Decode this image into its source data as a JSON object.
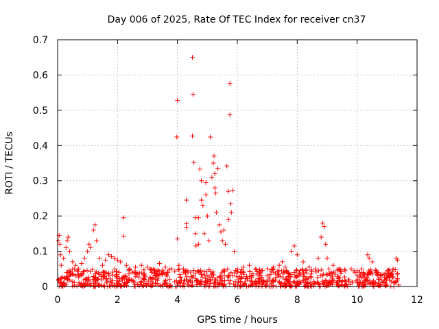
{
  "chart_data": {
    "type": "scatter",
    "title": "Day 006 of 2025, Rate Of TEC Index for receiver cn37",
    "xlabel": "GPS time / hours",
    "ylabel": "ROTI / TECUs",
    "xlim": [
      0,
      12
    ],
    "ylim": [
      0,
      0.7
    ],
    "x_ticks": [
      0,
      2,
      4,
      6,
      8,
      10,
      12
    ],
    "y_ticks": [
      0,
      0.1,
      0.2,
      0.3,
      0.4,
      0.5,
      0.6,
      0.7
    ],
    "x_tick_labels": [
      "0",
      "2",
      "4",
      "6",
      "8",
      "10",
      "12"
    ],
    "y_tick_labels": [
      "0",
      "0.1",
      "0.2",
      "0.3",
      "0.4",
      "0.5",
      "0.6",
      "0.7"
    ],
    "grid": true,
    "marker": "+",
    "color": "#ff0000",
    "series": [
      {
        "name": "ROTI",
        "points": [
          [
            0.02,
            0.13
          ],
          [
            0.05,
            0.145
          ],
          [
            0.08,
            0.12
          ],
          [
            0.1,
            0.09
          ],
          [
            0.12,
            0.06
          ],
          [
            0.2,
            0.08
          ],
          [
            0.28,
            0.11
          ],
          [
            0.32,
            0.13
          ],
          [
            0.35,
            0.14
          ],
          [
            0.4,
            0.1
          ],
          [
            0.5,
            0.07
          ],
          [
            0.6,
            0.06
          ],
          [
            0.7,
            0.05
          ],
          [
            0.8,
            0.065
          ],
          [
            0.9,
            0.08
          ],
          [
            1.0,
            0.1
          ],
          [
            1.05,
            0.12
          ],
          [
            1.1,
            0.11
          ],
          [
            1.2,
            0.16
          ],
          [
            1.25,
            0.175
          ],
          [
            1.3,
            0.13
          ],
          [
            1.4,
            0.08
          ],
          [
            1.5,
            0.06
          ],
          [
            1.6,
            0.075
          ],
          [
            1.7,
            0.09
          ],
          [
            1.8,
            0.085
          ],
          [
            1.9,
            0.08
          ],
          [
            2.0,
            0.075
          ],
          [
            2.1,
            0.07
          ],
          [
            2.2,
            0.195
          ],
          [
            2.2,
            0.143
          ],
          [
            2.3,
            0.06
          ],
          [
            2.4,
            0.05
          ],
          [
            2.6,
            0.055
          ],
          [
            2.8,
            0.06
          ],
          [
            3.0,
            0.055
          ],
          [
            3.2,
            0.05
          ],
          [
            3.4,
            0.065
          ],
          [
            3.6,
            0.055
          ],
          [
            3.8,
            0.05
          ],
          [
            4.0,
            0.528
          ],
          [
            3.98,
            0.424
          ],
          [
            4.0,
            0.135
          ],
          [
            4.05,
            0.06
          ],
          [
            4.2,
            0.05
          ],
          [
            4.3,
            0.245
          ],
          [
            4.3,
            0.178
          ],
          [
            4.3,
            0.168
          ],
          [
            4.5,
            0.65
          ],
          [
            4.52,
            0.545
          ],
          [
            4.5,
            0.427
          ],
          [
            4.55,
            0.352
          ],
          [
            4.6,
            0.195
          ],
          [
            4.6,
            0.15
          ],
          [
            4.62,
            0.115
          ],
          [
            4.7,
            0.12
          ],
          [
            4.7,
            0.195
          ],
          [
            4.75,
            0.333
          ],
          [
            4.8,
            0.3
          ],
          [
            4.85,
            0.23
          ],
          [
            4.8,
            0.245
          ],
          [
            4.9,
            0.15
          ],
          [
            4.95,
            0.26
          ],
          [
            4.95,
            0.295
          ],
          [
            5.0,
            0.2
          ],
          [
            5.05,
            0.13
          ],
          [
            5.1,
            0.424
          ],
          [
            5.15,
            0.31
          ],
          [
            5.2,
            0.35
          ],
          [
            5.22,
            0.37
          ],
          [
            5.25,
            0.32
          ],
          [
            5.25,
            0.28
          ],
          [
            5.28,
            0.265
          ],
          [
            5.3,
            0.21
          ],
          [
            5.35,
            0.335
          ],
          [
            5.4,
            0.175
          ],
          [
            5.45,
            0.155
          ],
          [
            5.5,
            0.13
          ],
          [
            5.55,
            0.16
          ],
          [
            5.6,
            0.12
          ],
          [
            5.65,
            0.342
          ],
          [
            5.7,
            0.27
          ],
          [
            5.7,
            0.19
          ],
          [
            5.75,
            0.576
          ],
          [
            5.75,
            0.487
          ],
          [
            5.78,
            0.235
          ],
          [
            5.8,
            0.21
          ],
          [
            5.85,
            0.273
          ],
          [
            5.9,
            0.1
          ],
          [
            6.0,
            0.05
          ],
          [
            6.2,
            0.055
          ],
          [
            6.4,
            0.06
          ],
          [
            6.6,
            0.05
          ],
          [
            6.8,
            0.045
          ],
          [
            7.0,
            0.05
          ],
          [
            7.2,
            0.055
          ],
          [
            7.4,
            0.06
          ],
          [
            7.5,
            0.07
          ],
          [
            7.6,
            0.055
          ],
          [
            7.8,
            0.1
          ],
          [
            7.9,
            0.115
          ],
          [
            8.0,
            0.09
          ],
          [
            8.2,
            0.07
          ],
          [
            8.4,
            0.055
          ],
          [
            8.6,
            0.05
          ],
          [
            8.7,
            0.08
          ],
          [
            8.8,
            0.14
          ],
          [
            8.85,
            0.18
          ],
          [
            8.9,
            0.17
          ],
          [
            8.95,
            0.12
          ],
          [
            9.0,
            0.08
          ],
          [
            9.2,
            0.06
          ],
          [
            9.4,
            0.05
          ],
          [
            9.6,
            0.045
          ],
          [
            9.8,
            0.05
          ],
          [
            10.0,
            0.045
          ],
          [
            10.2,
            0.04
          ],
          [
            10.35,
            0.09
          ],
          [
            10.4,
            0.08
          ],
          [
            10.5,
            0.07
          ],
          [
            10.7,
            0.04
          ],
          [
            10.9,
            0.035
          ],
          [
            11.1,
            0.03
          ],
          [
            11.2,
            0.05
          ],
          [
            11.3,
            0.08
          ],
          [
            11.35,
            0.075
          ]
        ]
      }
    ],
    "dense_band": {
      "x_range": [
        0,
        11.4
      ],
      "y_range": [
        0,
        0.05
      ],
      "note": "dense cluster of low ROTI values along the baseline"
    }
  }
}
